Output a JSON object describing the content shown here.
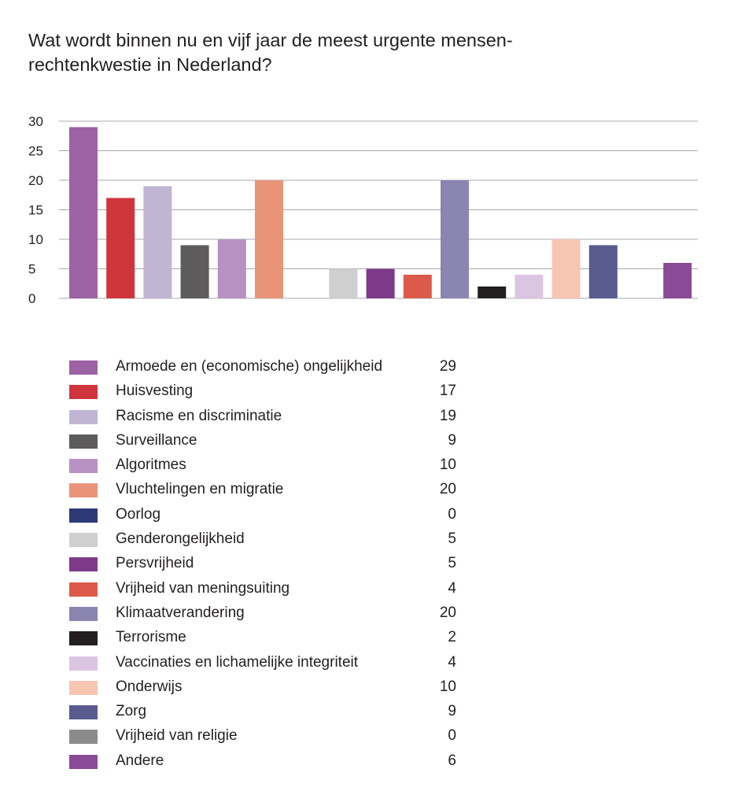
{
  "chart_data": {
    "type": "bar",
    "title_lines": [
      "Wat wordt binnen nu en vijf jaar de meest urgente mensen-",
      "rechtenkwestie in Nederland?"
    ],
    "xlabel": "",
    "ylabel": "",
    "ylim": [
      0,
      30
    ],
    "yticks": [
      0,
      5,
      10,
      15,
      20,
      25,
      30
    ],
    "grid": true,
    "legend_position": "below",
    "categories": [
      "Armoede en (economische) ongelijkheid",
      "Huisvesting",
      "Racisme en discriminatie",
      "Surveillance",
      "Algoritmes",
      "Vluchtelingen en migratie",
      "Oorlog",
      "Genderongelijkheid",
      "Persvrijheid",
      "Vrijheid van meningsuiting",
      "Klimaatverandering",
      "Terrorisme",
      "Vaccinaties en lichamelijke integriteit",
      "Onderwijs",
      "Zorg",
      "Vrijheid van religie",
      "Andere"
    ],
    "values": [
      29,
      17,
      19,
      9,
      10,
      20,
      0,
      5,
      5,
      4,
      20,
      2,
      4,
      10,
      9,
      0,
      6
    ],
    "colors": [
      "#9c62a4",
      "#d0343c",
      "#c1b5d4",
      "#5e5b5c",
      "#b891c3",
      "#e99379",
      "#2e3a75",
      "#cfcfcf",
      "#7d3a88",
      "#dc5a49",
      "#8b85b1",
      "#231f20",
      "#dcc5e2",
      "#f7c6b3",
      "#595a8e",
      "#8c8c8c",
      "#8a4a96"
    ]
  }
}
